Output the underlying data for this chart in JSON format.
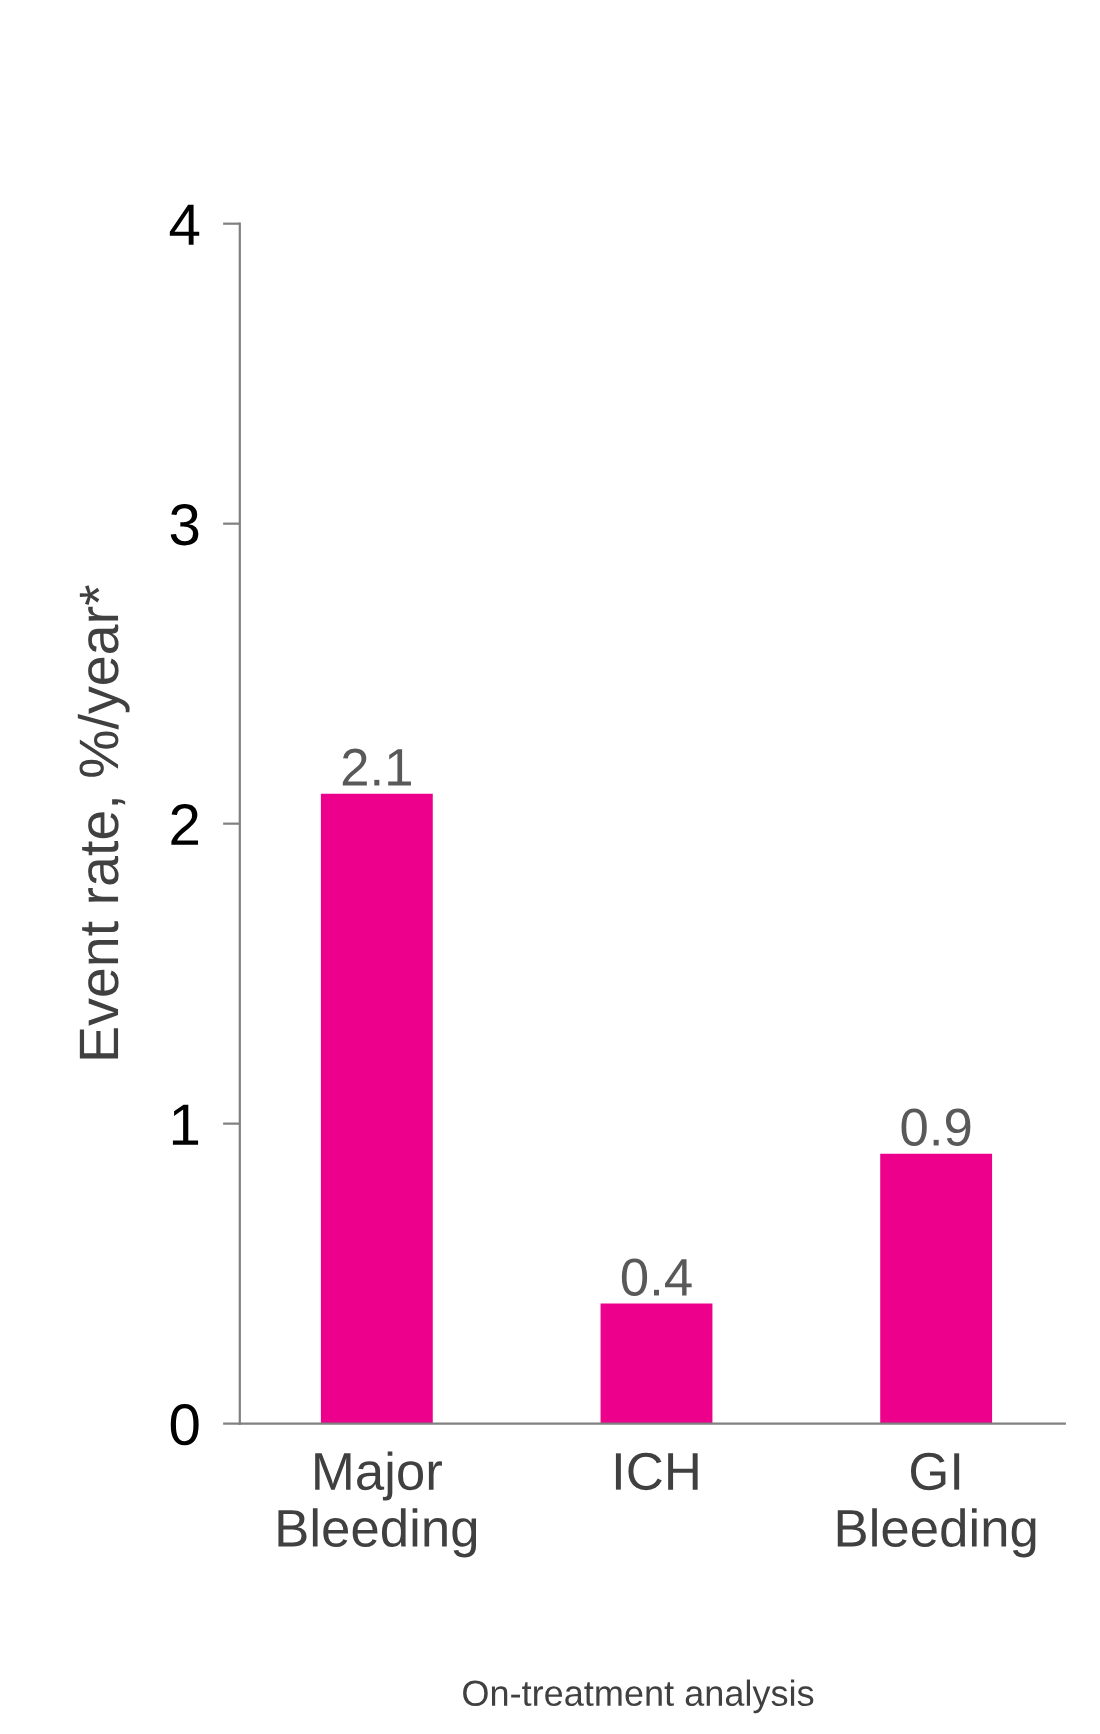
{
  "chart_data": {
    "type": "bar",
    "ylabel": "Event rate, %/year*",
    "categories": [
      "Major\nBleeding",
      "ICH",
      "GI\nBleeding"
    ],
    "values": [
      2.1,
      0.4,
      0.9
    ],
    "color": "#ec008c",
    "ylim": [
      0,
      4
    ],
    "yticks": [
      0,
      1,
      2,
      3,
      4
    ],
    "grid": false,
    "data_labels": true,
    "annotations": [
      "On-treatment analysis"
    ]
  }
}
